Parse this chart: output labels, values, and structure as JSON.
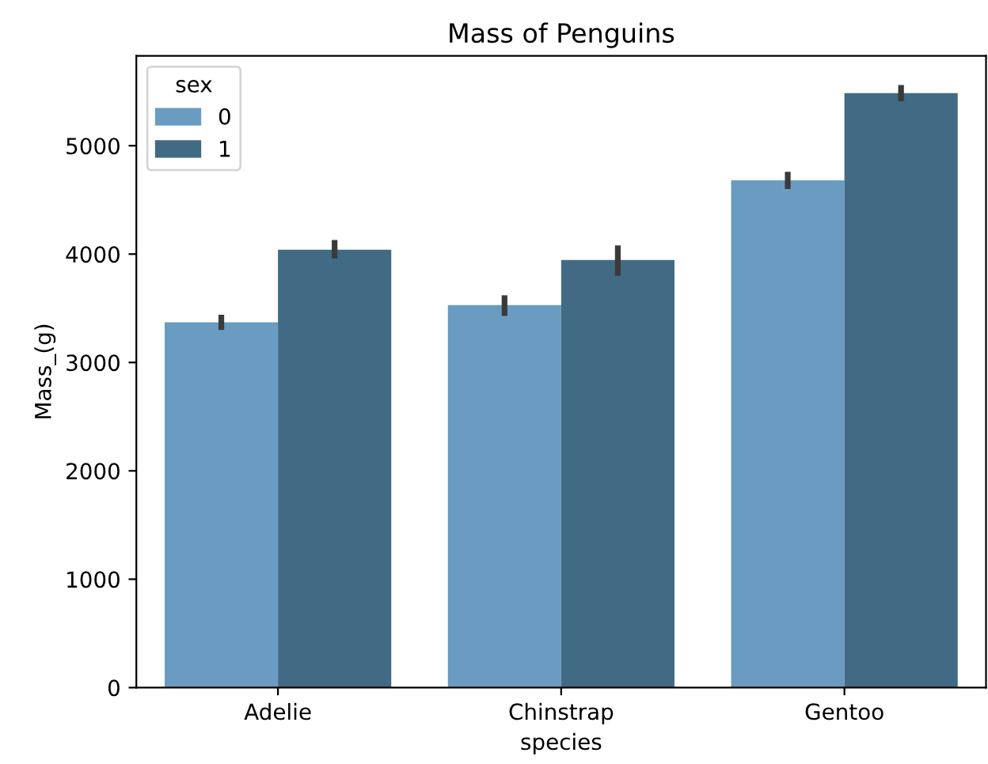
{
  "chart_data": {
    "type": "bar",
    "title": "Mass of Penguins",
    "xlabel": "species",
    "ylabel": "Mass_(g)",
    "legend_title": "sex",
    "categories": [
      "Adelie",
      "Chinstrap",
      "Gentoo"
    ],
    "series": [
      {
        "name": "0",
        "color": "#6a9cc2",
        "values": [
          3370,
          3530,
          4680
        ],
        "errors": [
          [
            3300,
            3440
          ],
          [
            3430,
            3620
          ],
          [
            4600,
            4760
          ]
        ]
      },
      {
        "name": "1",
        "color": "#416a84",
        "values": [
          4040,
          3945,
          5485
        ],
        "errors": [
          [
            3960,
            4130
          ],
          [
            3800,
            4080
          ],
          [
            5410,
            5560
          ]
        ]
      }
    ],
    "ylim": [
      0,
      5830
    ],
    "yticks": [
      0,
      1000,
      2000,
      3000,
      4000,
      5000
    ],
    "legend": "top left",
    "grid": false
  }
}
